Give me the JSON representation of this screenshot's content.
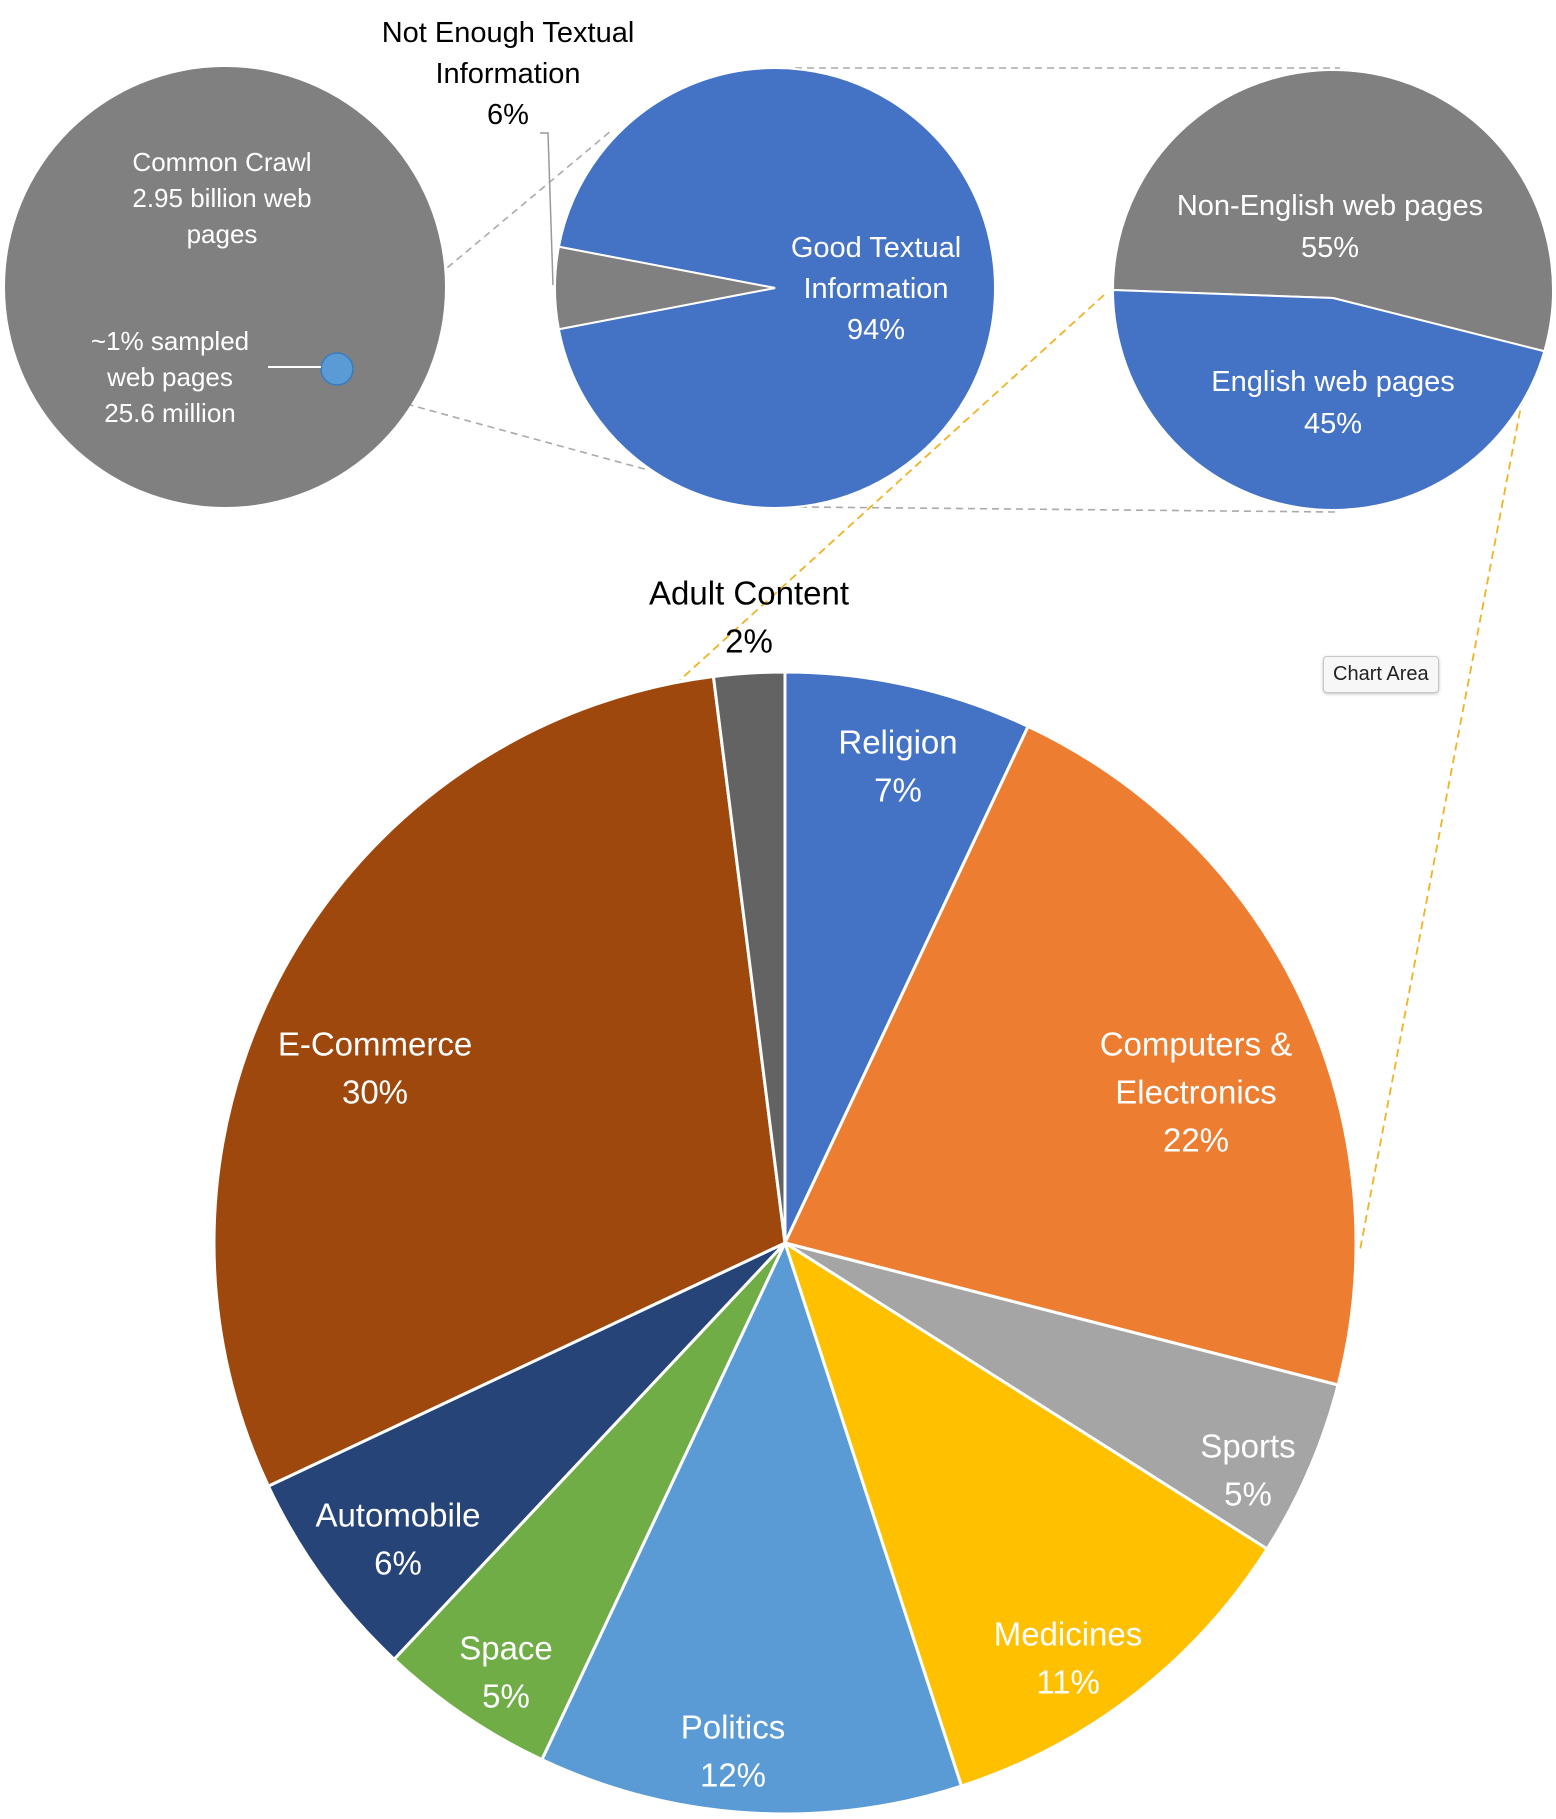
{
  "chart_data": [
    {
      "type": "pie",
      "chart_name": "common-crawl",
      "slices": [
        {
          "label_lines": [
            "Common Crawl",
            "2.95 billion  web",
            "pages"
          ],
          "value": 99,
          "color": "#808080"
        },
        {
          "label_lines": [
            "~1% sampled",
            "web pages",
            "25.6 million"
          ],
          "value": 1,
          "color": "#5b9bd5"
        }
      ]
    },
    {
      "type": "pie",
      "chart_name": "textual-quality",
      "slices": [
        {
          "label_lines": [
            "Good Textual",
            "Information",
            "94%"
          ],
          "value": 94,
          "color": "#4472c4"
        },
        {
          "label_lines": [
            "Not Enough Textual",
            "Information",
            "6%"
          ],
          "value": 6,
          "color": "#808080"
        }
      ]
    },
    {
      "type": "pie",
      "chart_name": "language",
      "slices": [
        {
          "label_lines": [
            "Non-English web pages",
            "55%"
          ],
          "value": 55,
          "color": "#808080"
        },
        {
          "label_lines": [
            "English web pages",
            "45%"
          ],
          "value": 45,
          "color": "#4472c4"
        }
      ]
    },
    {
      "type": "pie",
      "chart_name": "topics",
      "slices": [
        {
          "label_lines": [
            "Religion",
            "7%"
          ],
          "value": 7,
          "color": "#4472c4"
        },
        {
          "label_lines": [
            "Computers &",
            "Electronics",
            "22%"
          ],
          "value": 22,
          "color": "#ed7d31"
        },
        {
          "label_lines": [
            "Sports",
            "5%"
          ],
          "value": 5,
          "color": "#a5a5a5"
        },
        {
          "label_lines": [
            "Medicines",
            "11%"
          ],
          "value": 11,
          "color": "#ffc000"
        },
        {
          "label_lines": [
            "Politics",
            "12%"
          ],
          "value": 12,
          "color": "#5b9bd5"
        },
        {
          "label_lines": [
            "Space",
            "5%"
          ],
          "value": 5,
          "color": "#70ad47"
        },
        {
          "label_lines": [
            "Automobile",
            "6%"
          ],
          "value": 6,
          "color": "#264478"
        },
        {
          "label_lines": [
            "E-Commerce",
            "30%"
          ],
          "value": 30,
          "color": "#9e480e"
        },
        {
          "label_lines": [
            "Adult Content",
            "2%"
          ],
          "value": 2,
          "color": "#636363"
        }
      ]
    }
  ],
  "tooltip": {
    "text": "Chart Area"
  }
}
